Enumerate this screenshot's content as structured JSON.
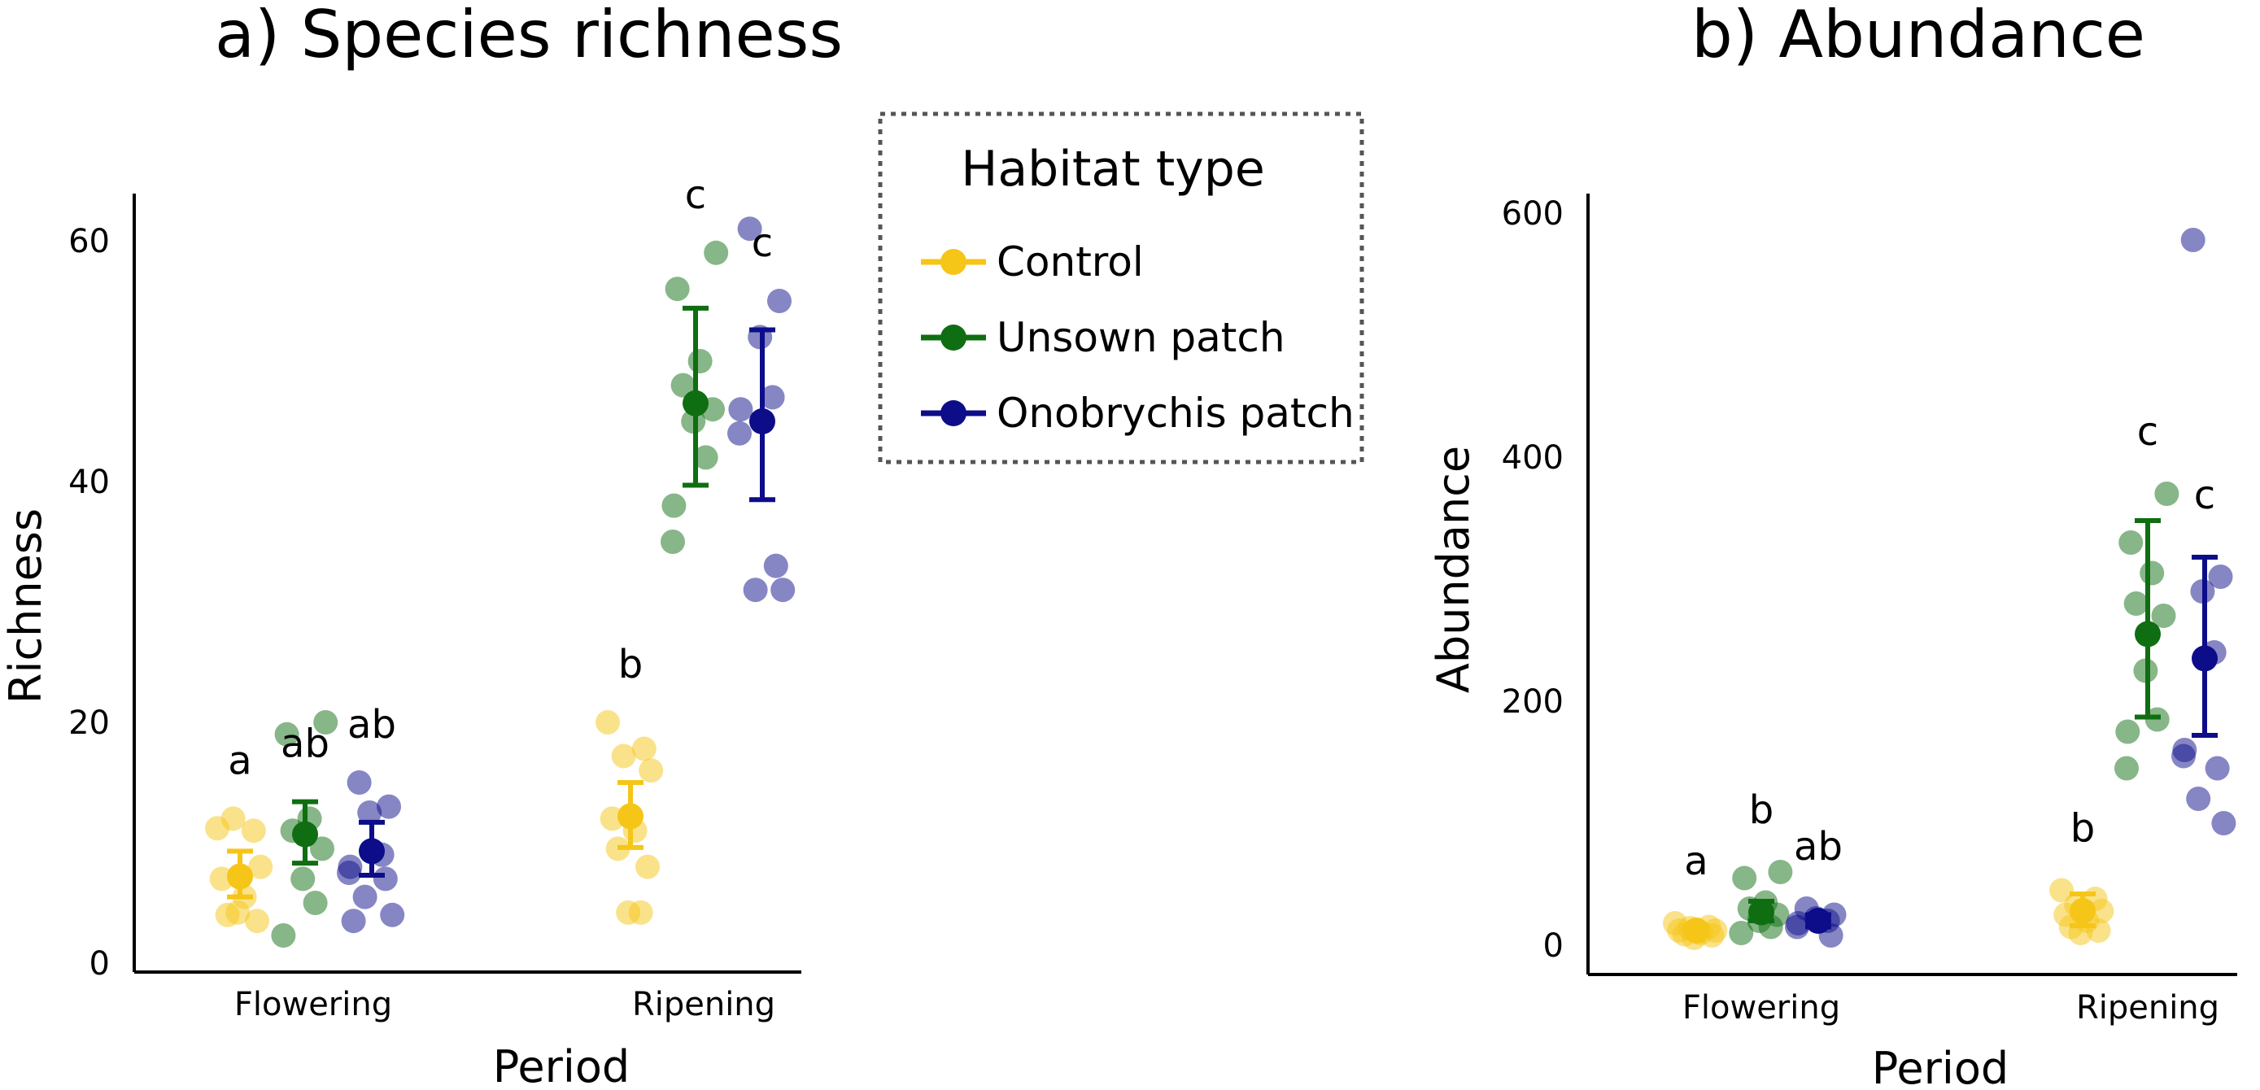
{
  "legend": {
    "title": "Habitat type",
    "placement": "between panels, top",
    "items": [
      {
        "label": "Control",
        "color": "#F5C518"
      },
      {
        "label": "Unsown patch",
        "color": "#0F6E12"
      },
      {
        "label": "Onobrychis patch",
        "color": "#0D0D8A"
      }
    ]
  },
  "chart_data": [
    {
      "type": "scatter",
      "title": "a) Species richness",
      "xlabel": "Period",
      "ylabel": "Richness",
      "categories": [
        "Flowering",
        "Ripening"
      ],
      "yticks": [
        0,
        20,
        40,
        60
      ],
      "ylim": [
        0,
        63
      ],
      "grid": false,
      "series": [
        {
          "name": "Control",
          "color": "#F5C518",
          "means": [
            7.2,
            12.2
          ],
          "ci": [
            [
              5.5,
              9.3
            ],
            [
              9.6,
              15.0
            ]
          ],
          "points": [
            [
              11.2,
              11.0,
              12.0,
              8.0,
              7.0,
              5.5,
              4.0,
              3.5,
              4.2
            ],
            [
              20.0,
              17.8,
              17.2,
              16.0,
              12.0,
              11.0,
              9.5,
              8.0,
              4.2,
              4.2
            ]
          ],
          "letters": [
            "a",
            "b"
          ]
        },
        {
          "name": "Unsown patch",
          "color": "#0F6E12",
          "means": [
            10.7,
            46.5
          ],
          "ci": [
            [
              8.3,
              13.4
            ],
            [
              39.7,
              54.4
            ]
          ],
          "points": [
            [
              20.0,
              19.0,
              12.0,
              11.0,
              9.5,
              7.0,
              5.0,
              2.3
            ],
            [
              59.0,
              56.0,
              50.0,
              48.0,
              46.0,
              45.0,
              42.0,
              38.0,
              35.0
            ]
          ],
          "letters": [
            "ab",
            "c"
          ]
        },
        {
          "name": "Onobrychis patch",
          "color": "#0D0D8A",
          "means": [
            9.3,
            45.0
          ],
          "ci": [
            [
              7.3,
              11.7
            ],
            [
              38.5,
              52.6
            ]
          ],
          "points": [
            [
              15.0,
              13.0,
              12.5,
              9.0,
              8.0,
              7.5,
              7.0,
              5.5,
              4.0,
              3.5
            ],
            [
              61.0,
              55.0,
              52.0,
              47.0,
              46.0,
              44.0,
              33.0,
              31.0,
              31.0
            ]
          ],
          "letters": [
            "ab",
            "c"
          ]
        }
      ]
    },
    {
      "type": "scatter",
      "title": "b) Abundance",
      "xlabel": "Period",
      "ylabel": "Abundance",
      "categories": [
        "Flowering",
        "Ripening"
      ],
      "yticks": [
        0,
        200,
        400,
        600
      ],
      "ylim": [
        0,
        640
      ],
      "grid": false,
      "series": [
        {
          "name": "Control",
          "color": "#F5C518",
          "means": [
            12,
            28
          ],
          "ci": [
            [
              8,
              16
            ],
            [
              16,
              42
            ]
          ],
          "points": [
            [
              18,
              15,
              14,
              12,
              12,
              10,
              9,
              8,
              6
            ],
            [
              45,
              38,
              33,
              28,
              25,
              20,
              15,
              12,
              10
            ]
          ],
          "letters": [
            "a",
            "b"
          ]
        },
        {
          "name": "Unsown patch",
          "color": "#0F6E12",
          "means": [
            27,
            255
          ],
          "ci": [
            [
              20,
              36
            ],
            [
              187,
              348
            ]
          ],
          "points": [
            [
              60,
              55,
              35,
              30,
              25,
              20,
              15,
              10
            ],
            [
              370,
              330,
              305,
              280,
              270,
              225,
              185,
              175,
              145
            ]
          ],
          "letters": [
            "b",
            "c"
          ]
        },
        {
          "name": "Onobrychis patch",
          "color": "#0D0D8A",
          "means": [
            20,
            235
          ],
          "ci": [
            [
              15,
              25
            ],
            [
              172,
              318
            ]
          ],
          "points": [
            [
              30,
              25,
              22,
              20,
              18,
              15,
              8
            ],
            [
              578,
              302,
              290,
              240,
              160,
              155,
              145,
              120,
              100
            ]
          ],
          "letters": [
            "ab",
            "c"
          ]
        }
      ]
    }
  ]
}
